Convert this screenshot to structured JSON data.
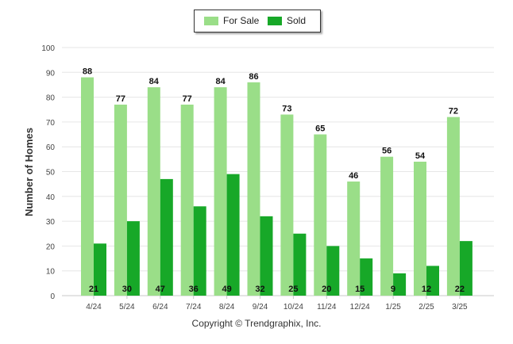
{
  "chart_data": {
    "type": "bar",
    "ylabel": "Number of Homes",
    "ylim": [
      0,
      100
    ],
    "yticks": [
      0,
      10,
      20,
      30,
      40,
      50,
      60,
      70,
      80,
      90,
      100
    ],
    "grid": true,
    "legend_position": "top-center",
    "categories": [
      "4/24",
      "5/24",
      "6/24",
      "7/24",
      "8/24",
      "9/24",
      "10/24",
      "11/24",
      "12/24",
      "1/25",
      "2/25",
      "3/25"
    ],
    "series": [
      {
        "name": "For Sale",
        "color": "#9ade88",
        "values": [
          88,
          77,
          84,
          77,
          84,
          86,
          73,
          65,
          46,
          56,
          54,
          72
        ]
      },
      {
        "name": "Sold",
        "color": "#17a828",
        "values": [
          21,
          30,
          47,
          36,
          49,
          32,
          25,
          20,
          15,
          9,
          12,
          22
        ]
      }
    ]
  },
  "legend": {
    "for_sale": "For Sale",
    "sold": "Sold"
  },
  "footer": "Copyright © Trendgraphix, Inc."
}
